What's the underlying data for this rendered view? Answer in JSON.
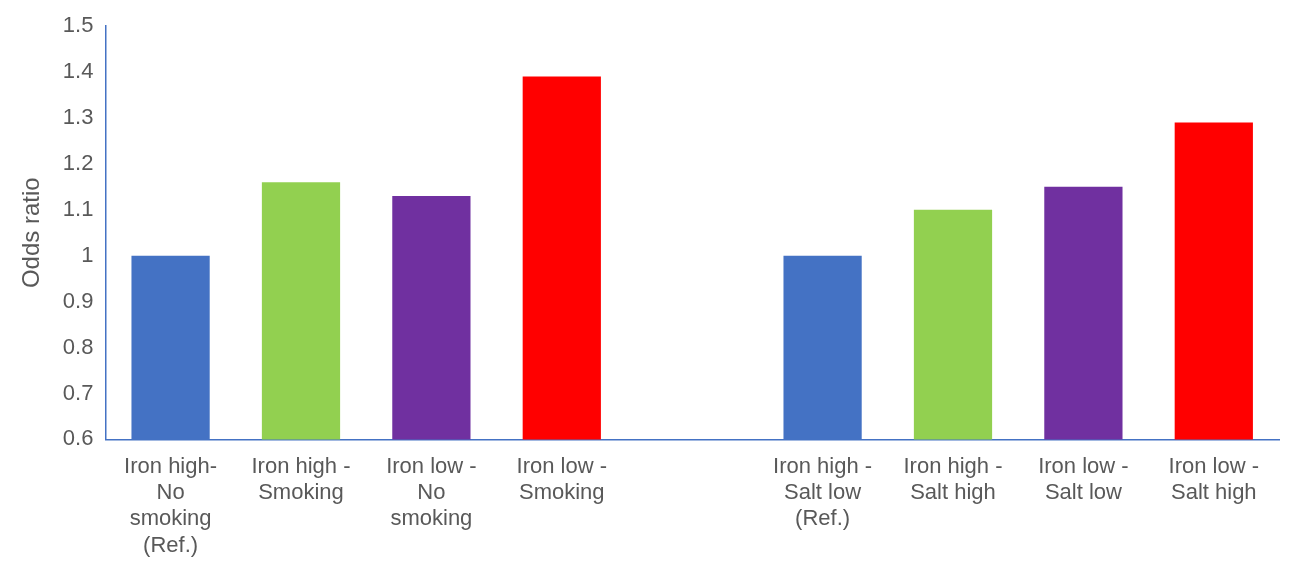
{
  "chart_data": {
    "type": "bar",
    "ylabel": "Odds ratio",
    "categories": [
      "Iron high- No smoking (Ref.)",
      "Iron high - Smoking",
      "Iron low - No smoking",
      "Iron low - Smoking",
      null,
      "Iron high - Salt low (Ref.)",
      "Iron high - Salt high",
      "Iron low - Salt low",
      "Iron low - Salt high"
    ],
    "values": [
      1,
      1.16,
      1.13,
      1.39,
      null,
      1,
      1.1,
      1.15,
      1.29
    ],
    "colors": [
      "#4472c4",
      "#92d050",
      "#7030a0",
      "#ff0000",
      null,
      "#4472c4",
      "#92d050",
      "#7030a0",
      "#ff0000"
    ],
    "ylim": [
      0.6,
      1.5
    ],
    "yticks": [
      0.6,
      0.7,
      0.8,
      0.9,
      1,
      1.1,
      1.2,
      1.3,
      1.4,
      1.5
    ],
    "grid": false,
    "legend": false
  }
}
